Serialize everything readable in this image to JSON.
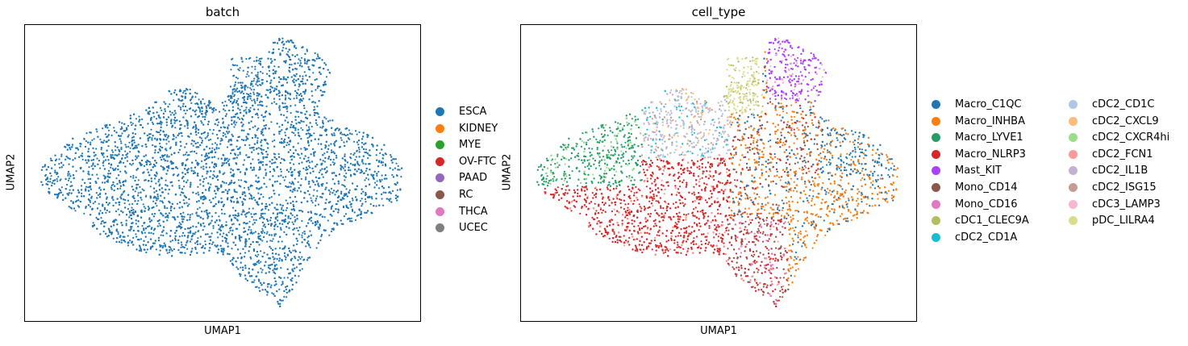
{
  "chart_data": [
    {
      "type": "scatter",
      "title": "batch",
      "xlabel": "UMAP1",
      "ylabel": "UMAP2",
      "xticks": false,
      "yticks": false,
      "legend": {
        "placement": "right",
        "columns": 1,
        "entries": [
          {
            "label": "ESCA",
            "color": "#1f77b4"
          },
          {
            "label": "KIDNEY",
            "color": "#ff7f0e"
          },
          {
            "label": "MYE",
            "color": "#2ca02c"
          },
          {
            "label": "OV-FTC",
            "color": "#d62728"
          },
          {
            "label": "PAAD",
            "color": "#9467bd"
          },
          {
            "label": "RC",
            "color": "#8c564b"
          },
          {
            "label": "THCA",
            "color": "#e377c2"
          },
          {
            "label": "UCEC",
            "color": "#7f7f7f"
          }
        ]
      },
      "series": [
        {
          "name": "ESCA",
          "color": "#1f77b4",
          "approx_points": 9000
        }
      ]
    },
    {
      "type": "scatter",
      "title": "cell_type",
      "xlabel": "UMAP1",
      "ylabel": "UMAP2",
      "xticks": false,
      "yticks": false,
      "legend": {
        "placement": "right",
        "columns": 2,
        "entries": [
          {
            "label": "Macro_C1QC",
            "color": "#1f77b4"
          },
          {
            "label": "Macro_INHBA",
            "color": "#ff7f0e"
          },
          {
            "label": "Macro_LYVE1",
            "color": "#279e68"
          },
          {
            "label": "Macro_NLRP3",
            "color": "#d62728"
          },
          {
            "label": "Mast_KIT",
            "color": "#aa40fc"
          },
          {
            "label": "Mono_CD14",
            "color": "#8c564b"
          },
          {
            "label": "Mono_CD16",
            "color": "#e377c2"
          },
          {
            "label": "cDC1_CLEC9A",
            "color": "#b5bd61"
          },
          {
            "label": "cDC2_CD1A",
            "color": "#17becf"
          },
          {
            "label": "cDC2_CD1C",
            "color": "#aec7e8"
          },
          {
            "label": "cDC2_CXCL9",
            "color": "#ffbb78"
          },
          {
            "label": "cDC2_CXCR4hi",
            "color": "#98df8a"
          },
          {
            "label": "cDC2_FCN1",
            "color": "#ff9896"
          },
          {
            "label": "cDC2_IL1B",
            "color": "#c5b0d5"
          },
          {
            "label": "cDC2_ISG15",
            "color": "#c49c94"
          },
          {
            "label": "cDC3_LAMP3",
            "color": "#f7b6d2"
          },
          {
            "label": "pDC_LILRA4",
            "color": "#dbdb8d"
          }
        ]
      }
    }
  ]
}
